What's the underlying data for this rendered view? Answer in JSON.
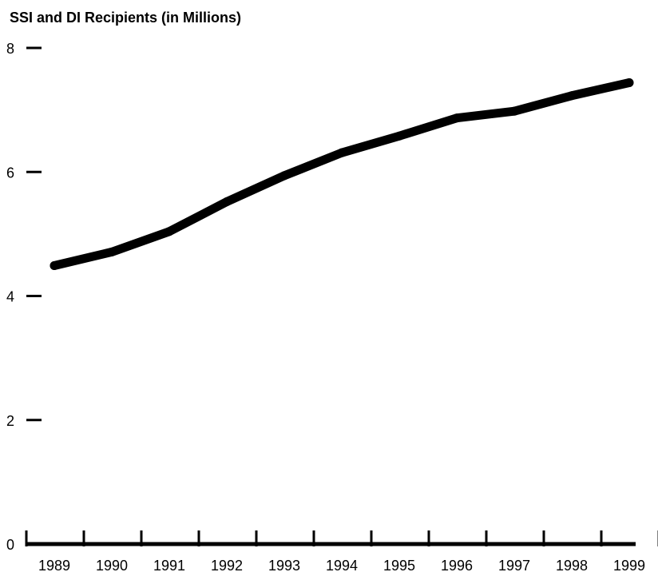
{
  "chart_data": {
    "type": "line",
    "title": "SSI and DI Recipients (in Millions)",
    "xlabel": "",
    "ylabel": "",
    "categories": [
      "1989",
      "1990",
      "1991",
      "1992",
      "1993",
      "1994",
      "1995",
      "1996",
      "1997",
      "1998",
      "1999"
    ],
    "series": [
      {
        "values": [
          4.49,
          4.71,
          5.04,
          5.52,
          5.94,
          6.31,
          6.58,
          6.87,
          6.98,
          7.23,
          7.44
        ]
      }
    ],
    "ylim": [
      0,
      8
    ],
    "yticks": [
      "0",
      "2",
      "4",
      "6",
      "8"
    ],
    "grid": false,
    "line_color": "#000000"
  }
}
